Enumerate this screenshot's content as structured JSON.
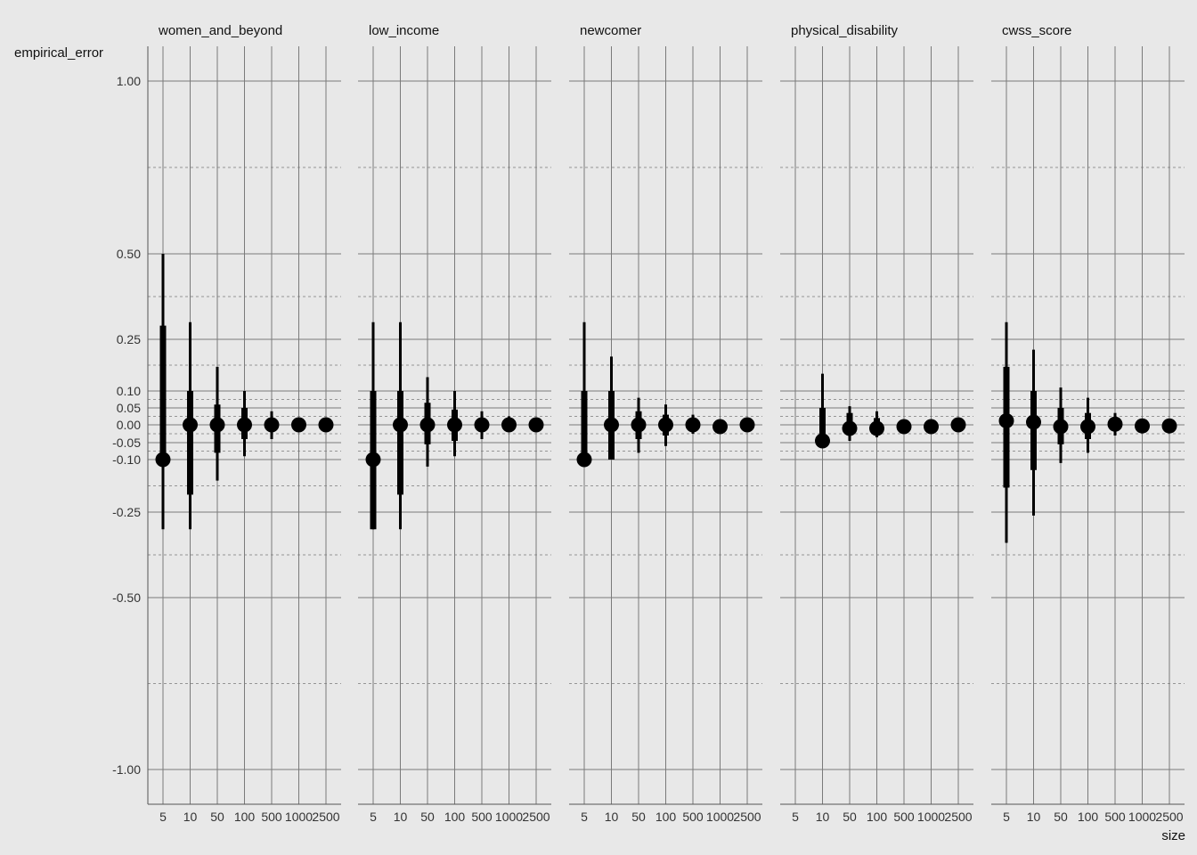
{
  "chart_data": {
    "type": "pointrange-facets",
    "ylabel": "empirical_error",
    "xlabel": "size",
    "x_categories": [
      "5",
      "10",
      "50",
      "100",
      "500",
      "1000",
      "2500"
    ],
    "y_ticks": [
      {
        "value": 1.0,
        "label": "1.00"
      },
      {
        "value": 0.5,
        "label": "0.50"
      },
      {
        "value": 0.25,
        "label": "0.25"
      },
      {
        "value": 0.1,
        "label": "0.10"
      },
      {
        "value": 0.05,
        "label": "0.05"
      },
      {
        "value": 0.0,
        "label": "0.00"
      },
      {
        "value": -0.05,
        "label": "-0.05"
      },
      {
        "value": -0.1,
        "label": "-0.10"
      },
      {
        "value": -0.25,
        "label": "-0.25"
      },
      {
        "value": -0.5,
        "label": "-0.50"
      },
      {
        "value": -1.0,
        "label": "-1.00"
      }
    ],
    "y_minor_gridlines": [
      -0.75,
      -0.375,
      -0.175,
      -0.075,
      -0.025,
      0.025,
      0.075,
      0.175,
      0.375,
      0.75
    ],
    "y_scale": "pseudo-log (compressed near zero)",
    "grid": true,
    "facets": [
      {
        "title": "women_and_beyond",
        "points": [
          {
            "x": "5",
            "y": -0.1,
            "inner": [
              -0.1,
              0.29
            ],
            "outer": [
              -0.3,
              0.5
            ]
          },
          {
            "x": "10",
            "y": 0.0,
            "inner": [
              -0.2,
              0.1
            ],
            "outer": [
              -0.3,
              0.3
            ]
          },
          {
            "x": "50",
            "y": 0.0,
            "inner": [
              -0.08,
              0.06
            ],
            "outer": [
              -0.16,
              0.17
            ]
          },
          {
            "x": "100",
            "y": 0.0,
            "inner": [
              -0.04,
              0.05
            ],
            "outer": [
              -0.09,
              0.1
            ]
          },
          {
            "x": "500",
            "y": 0.0,
            "inner": [
              -0.01,
              0.02
            ],
            "outer": [
              -0.04,
              0.04
            ]
          },
          {
            "x": "1000",
            "y": 0.0,
            "inner": [
              -0.01,
              0.01
            ],
            "outer": [
              -0.02,
              0.02
            ]
          },
          {
            "x": "2500",
            "y": 0.0,
            "inner": [
              -0.005,
              0.005
            ],
            "outer": [
              -0.01,
              0.01
            ]
          }
        ]
      },
      {
        "title": "low_income",
        "points": [
          {
            "x": "5",
            "y": -0.1,
            "inner": [
              -0.3,
              0.1
            ],
            "outer": [
              -0.3,
              0.3
            ]
          },
          {
            "x": "10",
            "y": 0.0,
            "inner": [
              -0.2,
              0.1
            ],
            "outer": [
              -0.3,
              0.3
            ]
          },
          {
            "x": "50",
            "y": 0.0,
            "inner": [
              -0.055,
              0.065
            ],
            "outer": [
              -0.12,
              0.14
            ]
          },
          {
            "x": "100",
            "y": 0.0,
            "inner": [
              -0.045,
              0.045
            ],
            "outer": [
              -0.09,
              0.1
            ]
          },
          {
            "x": "500",
            "y": 0.0,
            "inner": [
              -0.02,
              0.02
            ],
            "outer": [
              -0.04,
              0.04
            ]
          },
          {
            "x": "1000",
            "y": 0.0,
            "inner": [
              -0.01,
              0.01
            ],
            "outer": [
              -0.02,
              0.025
            ]
          },
          {
            "x": "2500",
            "y": 0.0,
            "inner": [
              -0.005,
              0.005
            ],
            "outer": [
              -0.01,
              0.01
            ]
          }
        ]
      },
      {
        "title": "newcomer",
        "points": [
          {
            "x": "5",
            "y": -0.1,
            "inner": [
              -0.1,
              0.1
            ],
            "outer": [
              -0.1,
              0.3
            ]
          },
          {
            "x": "10",
            "y": 0.0,
            "inner": [
              -0.1,
              0.1
            ],
            "outer": [
              -0.1,
              0.2
            ]
          },
          {
            "x": "50",
            "y": 0.0,
            "inner": [
              -0.04,
              0.04
            ],
            "outer": [
              -0.08,
              0.08
            ]
          },
          {
            "x": "100",
            "y": 0.0,
            "inner": [
              -0.03,
              0.03
            ],
            "outer": [
              -0.06,
              0.06
            ]
          },
          {
            "x": "500",
            "y": 0.0,
            "inner": [
              -0.01,
              0.015
            ],
            "outer": [
              -0.025,
              0.03
            ]
          },
          {
            "x": "1000",
            "y": -0.005,
            "inner": [
              -0.01,
              0.005
            ],
            "outer": [
              -0.015,
              0.01
            ]
          },
          {
            "x": "2500",
            "y": 0.0,
            "inner": [
              -0.005,
              0.005
            ],
            "outer": [
              -0.01,
              0.01
            ]
          }
        ]
      },
      {
        "title": "physical_disability",
        "points": [
          {
            "x": "10",
            "y": -0.045,
            "inner": [
              -0.045,
              0.05
            ],
            "outer": [
              -0.045,
              0.15
            ]
          },
          {
            "x": "50",
            "y": -0.01,
            "inner": [
              -0.025,
              0.035
            ],
            "outer": [
              -0.045,
              0.055
            ]
          },
          {
            "x": "100",
            "y": -0.01,
            "inner": [
              -0.02,
              0.02
            ],
            "outer": [
              -0.035,
              0.04
            ]
          },
          {
            "x": "500",
            "y": -0.005,
            "inner": [
              -0.01,
              0.005
            ],
            "outer": [
              -0.015,
              0.01
            ]
          },
          {
            "x": "1000",
            "y": -0.005,
            "inner": [
              -0.01,
              0.005
            ],
            "outer": [
              -0.015,
              0.01
            ]
          },
          {
            "x": "2500",
            "y": 0.0,
            "inner": [
              -0.005,
              0.005
            ],
            "outer": [
              -0.01,
              0.01
            ]
          }
        ]
      },
      {
        "title": "cwss_score",
        "points": [
          {
            "x": "5",
            "y": 0.012,
            "inner": [
              -0.18,
              0.17
            ],
            "outer": [
              -0.34,
              0.3
            ]
          },
          {
            "x": "10",
            "y": 0.008,
            "inner": [
              -0.13,
              0.1
            ],
            "outer": [
              -0.26,
              0.22
            ]
          },
          {
            "x": "50",
            "y": -0.005,
            "inner": [
              -0.055,
              0.05
            ],
            "outer": [
              -0.11,
              0.11
            ]
          },
          {
            "x": "100",
            "y": -0.005,
            "inner": [
              -0.04,
              0.035
            ],
            "outer": [
              -0.08,
              0.08
            ]
          },
          {
            "x": "500",
            "y": 0.002,
            "inner": [
              -0.015,
              0.02
            ],
            "outer": [
              -0.03,
              0.035
            ]
          },
          {
            "x": "1000",
            "y": -0.003,
            "inner": [
              -0.01,
              0.008
            ],
            "outer": [
              -0.02,
              0.015
            ]
          },
          {
            "x": "2500",
            "y": -0.003,
            "inner": [
              -0.008,
              0.005
            ],
            "outer": [
              -0.015,
              0.01
            ]
          }
        ]
      }
    ]
  }
}
